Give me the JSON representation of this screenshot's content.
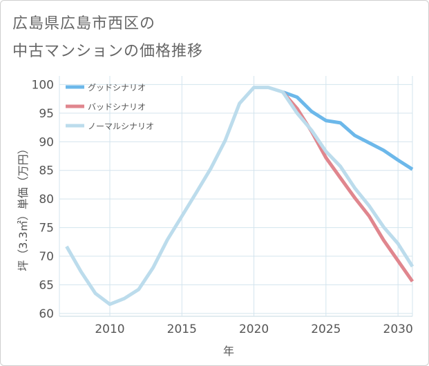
{
  "header": {
    "title_line1": "広島県広島市西区の",
    "title_line2": "中古マンションの価格推移"
  },
  "colors": {
    "good": "#6cb8ea",
    "bad": "#e0868e",
    "normal": "#bcdcec",
    "grid": "#d3e4ee"
  },
  "chart_data": {
    "type": "line",
    "title": "広島県広島市西区の中古マンションの価格推移",
    "xlabel": "年",
    "ylabel": "坪（3.3㎡）単価（万円）",
    "xlim": [
      2006.5,
      2031
    ],
    "ylim": [
      59.5,
      101.5
    ],
    "xticks": [
      2010,
      2015,
      2020,
      2025,
      2030
    ],
    "yticks": [
      60,
      65,
      70,
      75,
      80,
      85,
      90,
      95,
      100
    ],
    "grid": true,
    "legend_position": "top-left",
    "series": [
      {
        "name": "グッドシナリオ",
        "color": "#6cb8ea",
        "x": [
          2022,
          2023,
          2024,
          2025,
          2026,
          2027,
          2028,
          2029,
          2030,
          2031
        ],
        "y": [
          98.7,
          97.8,
          95.3,
          93.7,
          93.3,
          91.1,
          89.8,
          88.5,
          86.8,
          85.2
        ]
      },
      {
        "name": "バッドシナリオ",
        "color": "#e0868e",
        "x": [
          2022,
          2023,
          2024,
          2025,
          2026,
          2027,
          2028,
          2029,
          2030,
          2031
        ],
        "y": [
          98.7,
          95.8,
          91.8,
          87.2,
          83.7,
          80.2,
          77.0,
          72.8,
          69.2,
          65.6
        ]
      },
      {
        "name": "ノーマルシナリオ",
        "color": "#bcdcec",
        "x": [
          2007,
          2008,
          2009,
          2010,
          2011,
          2012,
          2013,
          2014,
          2015,
          2016,
          2017,
          2018,
          2019,
          2020,
          2021,
          2022,
          2023,
          2024,
          2025,
          2026,
          2027,
          2028,
          2029,
          2030,
          2031
        ],
        "y": [
          71.7,
          67.3,
          63.5,
          61.6,
          62.6,
          64.2,
          68.0,
          72.9,
          77.0,
          81.1,
          85.3,
          90.2,
          96.7,
          99.5,
          99.5,
          98.7,
          95.0,
          92.0,
          88.3,
          85.7,
          81.9,
          78.8,
          75.1,
          72.2,
          68.2
        ]
      }
    ]
  }
}
